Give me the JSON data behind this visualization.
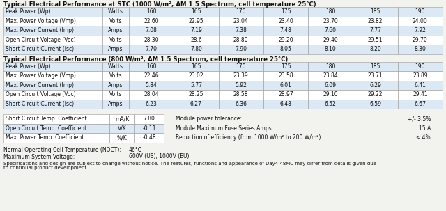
{
  "title1": "Typical Electrical Performance at STC (1000 W/m², AM 1.5 Spectrum, cell temperature 25°C)",
  "title2": "Typical Electrical Performance (800 W/m², AM 1.5 Spectrum, cell temperature 25°C)",
  "stc_rows": [
    [
      "Peak Power (Wp)",
      "Watts",
      "160",
      "165",
      "170",
      "175",
      "180",
      "185",
      "190"
    ],
    [
      "Max. Power Voltage (Vmp)",
      "Volts",
      "22.60",
      "22.95",
      "23.04",
      "23.40",
      "23.70",
      "23.82",
      "24.00"
    ],
    [
      "Max. Power Current (Imp)",
      "Amps",
      "7.08",
      "7.19",
      "7.38",
      "7.48",
      "7.60",
      "7.77",
      "7.92"
    ],
    [
      "Open Circuit Voltage (Voc)",
      "Volts",
      "28.30",
      "28.6",
      "28.80",
      "29.20",
      "29.40",
      "29.51",
      "29.70"
    ],
    [
      "Short Circuit Current (Isc)",
      "Amps",
      "7.70",
      "7.80",
      "7.90",
      "8.05",
      "8.10",
      "8.20",
      "8.30"
    ]
  ],
  "pv800_rows": [
    [
      "Peak Power (Wp)",
      "Watts",
      "160",
      "165",
      "170",
      "175",
      "180",
      "185",
      "190"
    ],
    [
      "Max. Power Voltage (Vmp)",
      "Volts",
      "22.46",
      "23.02",
      "23.39",
      "23.58",
      "23.84",
      "23.71",
      "23.89"
    ],
    [
      "Max. Power Current (Imp)",
      "Amps",
      "5.84",
      "5.77",
      "5.92",
      "6.01",
      "6.09",
      "6.29",
      "6.41"
    ],
    [
      "Open Circuit Voltage (Voc)",
      "Volts",
      "28.04",
      "28.25",
      "28.58",
      "28.97",
      "29.10",
      "29.22",
      "29.41"
    ],
    [
      "Short Circuit Current (Isc)",
      "Amps",
      "6.23",
      "6.27",
      "6.36",
      "6.48",
      "6.52",
      "6.59",
      "6.67"
    ]
  ],
  "coeff_rows": [
    [
      "Short Circuit Temp. Coefficient",
      "mA/K",
      "7.80"
    ],
    [
      "Open Circuit Temp. Coefficient",
      "V/K",
      "-0.11"
    ],
    [
      "Max. Power Temp. Coefficient",
      "%/K",
      "-0.48"
    ]
  ],
  "right_labels": [
    "Module power tolerance:",
    "Module Maximum Fuse Series Amps:",
    "Reduction of efficiency (from 1000 W/m² to 200 W/m²):"
  ],
  "right_values": [
    "+/- 3.5%",
    "15 A",
    "< 4%"
  ],
  "noct_label": "Normal Operating Cell Temperature (NOCT):",
  "noct_value": "46°C",
  "voltage_label": "Maximum System Voltage:",
  "voltage_value": "600V (US), 1000V (EU)",
  "footer1": "Specifications and design are subject to change without notice. The features, functions and appearance of Day4 48MC may differ from details given due",
  "footer2": "to continual product development.",
  "bg_color": "#f2f2ee",
  "row_even": "#dce9f5",
  "row_odd": "#ffffff",
  "border_color": "#999999",
  "title_fontsize": 6.2,
  "cell_fontsize": 5.5,
  "info_fontsize": 5.5,
  "footer_fontsize": 5.0
}
